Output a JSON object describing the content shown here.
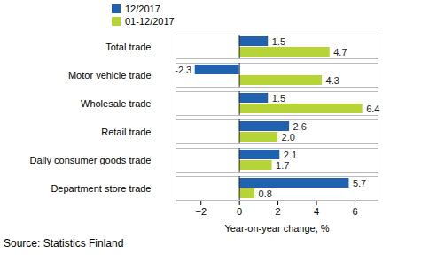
{
  "chart_data": {
    "type": "bar",
    "orientation": "horizontal",
    "categories": [
      "Total trade",
      "Motor vehicle trade",
      "Wholesale trade",
      "Retail trade",
      "Daily consumer goods trade",
      "Department store trade"
    ],
    "series": [
      {
        "name": "12/2017",
        "color": "#2062b0",
        "values": [
          1.5,
          -2.3,
          1.5,
          2.6,
          2.1,
          5.7
        ],
        "value_labels": [
          "1.5",
          "-2.3",
          "1.5",
          "2.6",
          "2.1",
          "5.7"
        ]
      },
      {
        "name": "01-12/2017",
        "color": "#b7d437",
        "values": [
          4.7,
          4.3,
          6.4,
          2.0,
          1.7,
          0.8
        ],
        "value_labels": [
          "4.7",
          "4.3",
          "6.4",
          "2.0",
          "1.7",
          "0.8"
        ]
      }
    ],
    "x_label": "Year-on-year change, %",
    "xlim": [
      -3.3,
      7.2
    ],
    "xticks": [
      -2,
      0,
      2,
      4,
      6
    ],
    "data_labels": true,
    "legend": "top-left",
    "grid": false,
    "source": "Source: Statistics Finland"
  }
}
